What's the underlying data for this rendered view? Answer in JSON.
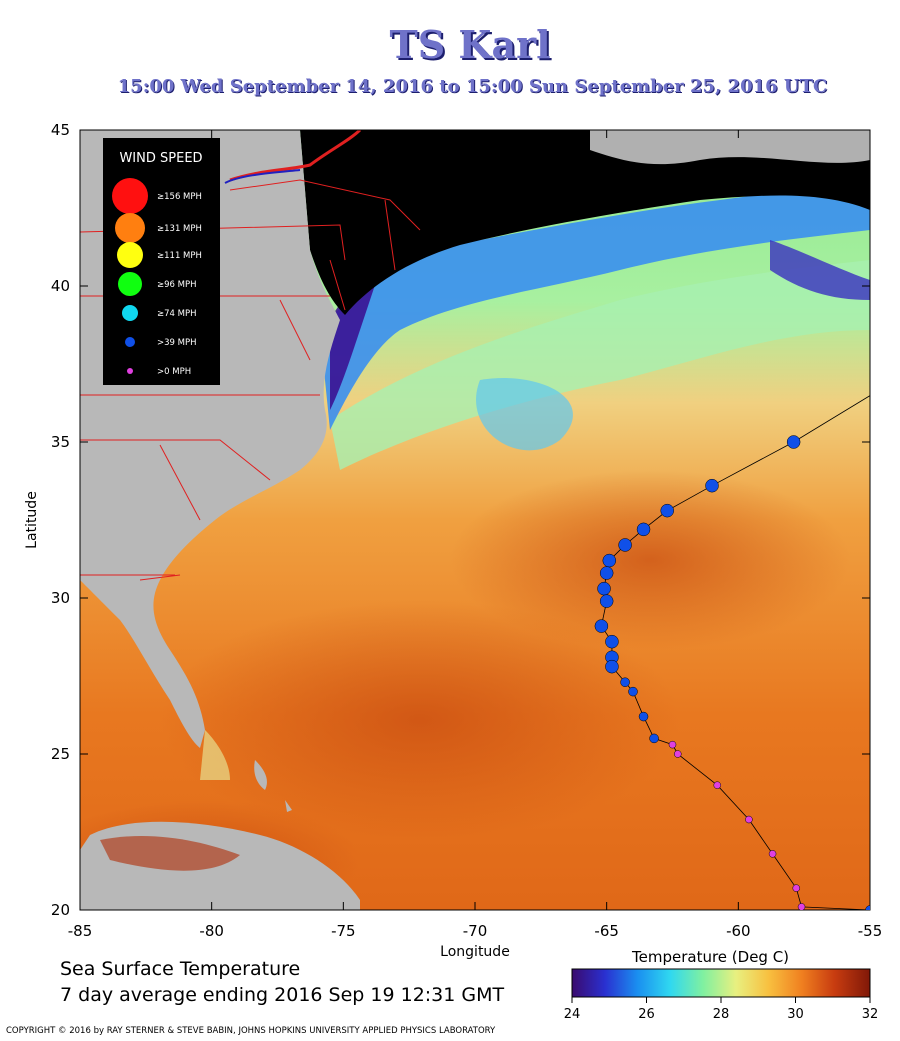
{
  "title": "TS Karl",
  "subtitle": "15:00 Wed September 14, 2016 to 15:00 Sun September 25, 2016  UTC",
  "footer": {
    "line1": "Sea Surface Temperature",
    "line2": "7 day average ending 2016 Sep 19 12:31 GMT"
  },
  "copyright": "COPYRIGHT © 2016 by RAY STERNER & STEVE BABIN, JOHNS HOPKINS UNIVERSITY APPLIED PHYSICS LABORATORY",
  "axes": {
    "xlabel": "Longitude",
    "ylabel": "Latitude",
    "x_range": [
      -85,
      -55
    ],
    "y_range": [
      20,
      45
    ],
    "x_ticks": [
      "-85",
      "-80",
      "-75",
      "-70",
      "-65",
      "-60",
      "-55"
    ],
    "y_ticks": [
      "45",
      "40",
      "35",
      "30",
      "25",
      "20"
    ]
  },
  "legend": {
    "title": "WIND SPEED",
    "entries": [
      {
        "label": "≥156 MPH",
        "color": "#ff1010"
      },
      {
        "label": "≥131 MPH",
        "color": "#ff7f10"
      },
      {
        "label": "≥111 MPH",
        "color": "#ffff10"
      },
      {
        "label": "≥96 MPH",
        "color": "#10ff10"
      },
      {
        "label": "≥74 MPH",
        "color": "#10d8f0"
      },
      {
        "label": ">39 MPH",
        "color": "#1050e8"
      },
      {
        "label": ">0 MPH",
        "color": "#e040e0"
      }
    ]
  },
  "colorbar": {
    "title": "Temperature (Deg C)",
    "ticks": [
      "24",
      "26",
      "28",
      "30",
      "32"
    ],
    "range": [
      24,
      32
    ],
    "colors": [
      "#3a0a6e",
      "#2a30d0",
      "#1a8ff0",
      "#30d8f0",
      "#80f0a0",
      "#e8f080",
      "#f8c040",
      "#f08020",
      "#c83c10",
      "#801808"
    ]
  },
  "chart_data": {
    "type": "scatter",
    "x_range": [
      -85,
      -55
    ],
    "y_range": [
      20,
      45
    ],
    "track": [
      {
        "lon": -54,
        "lat": 37.0,
        "cat": "ts"
      },
      {
        "lon": -57.9,
        "lat": 35.0,
        "cat": "ts"
      },
      {
        "lon": -61.0,
        "lat": 33.6,
        "cat": "ts"
      },
      {
        "lon": -62.7,
        "lat": 32.8,
        "cat": "ts"
      },
      {
        "lon": -63.6,
        "lat": 32.2,
        "cat": "ts"
      },
      {
        "lon": -64.3,
        "lat": 31.7,
        "cat": "ts"
      },
      {
        "lon": -64.9,
        "lat": 31.2,
        "cat": "ts"
      },
      {
        "lon": -65.0,
        "lat": 30.8,
        "cat": "ts"
      },
      {
        "lon": -65.1,
        "lat": 30.3,
        "cat": "ts"
      },
      {
        "lon": -65.0,
        "lat": 29.9,
        "cat": "ts"
      },
      {
        "lon": -65.2,
        "lat": 29.1,
        "cat": "ts"
      },
      {
        "lon": -64.8,
        "lat": 28.6,
        "cat": "ts"
      },
      {
        "lon": -64.8,
        "lat": 28.1,
        "cat": "ts"
      },
      {
        "lon": -64.8,
        "lat": 27.8,
        "cat": "ts"
      },
      {
        "lon": -64.3,
        "lat": 27.3,
        "cat": "ts"
      },
      {
        "lon": -64.0,
        "lat": 27.0,
        "cat": "ts"
      },
      {
        "lon": -63.6,
        "lat": 26.2,
        "cat": "ts"
      },
      {
        "lon": -63.2,
        "lat": 25.5,
        "cat": "ts"
      },
      {
        "lon": -62.5,
        "lat": 25.3,
        "cat": "td"
      },
      {
        "lon": -62.3,
        "lat": 25.0,
        "cat": "td"
      },
      {
        "lon": -60.8,
        "lat": 24.0,
        "cat": "td"
      },
      {
        "lon": -59.6,
        "lat": 22.9,
        "cat": "td"
      },
      {
        "lon": -58.7,
        "lat": 21.8,
        "cat": "td"
      },
      {
        "lon": -57.8,
        "lat": 20.7,
        "cat": "td"
      },
      {
        "lon": -57.6,
        "lat": 20.1,
        "cat": "td"
      },
      {
        "lon": -55.0,
        "lat": 20.0,
        "cat": "ts"
      }
    ]
  }
}
